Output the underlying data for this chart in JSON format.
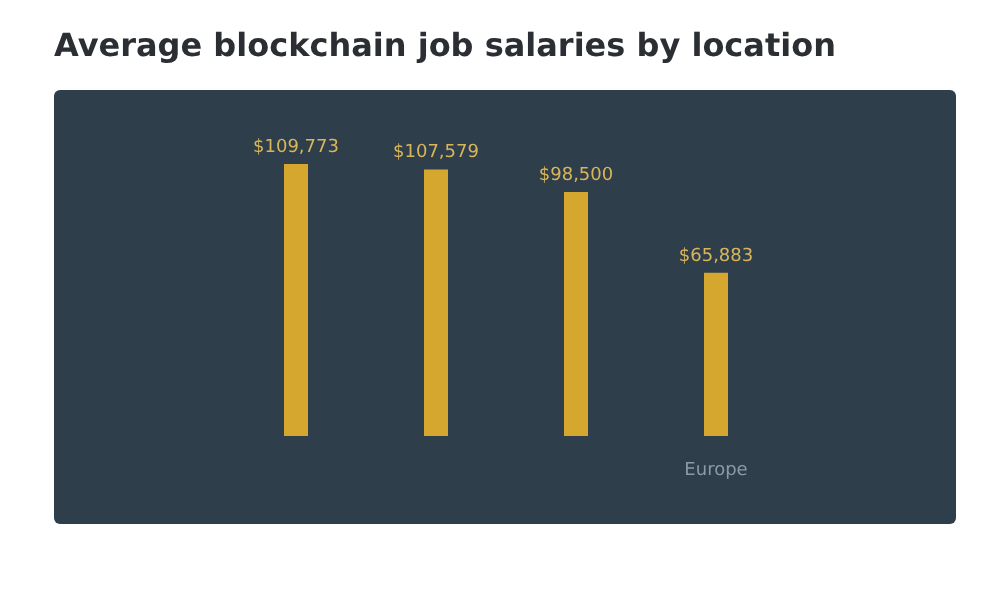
{
  "chart_data": {
    "type": "bar",
    "title": "Average blockchain job salaries by location",
    "categories": [
      null,
      null,
      null,
      "Europe"
    ],
    "values": [
      109773,
      107579,
      98500,
      65883
    ],
    "value_labels": [
      "$109,773",
      "$107,579",
      "$98,500",
      "$65,883"
    ],
    "color": "#d6a72e"
  }
}
